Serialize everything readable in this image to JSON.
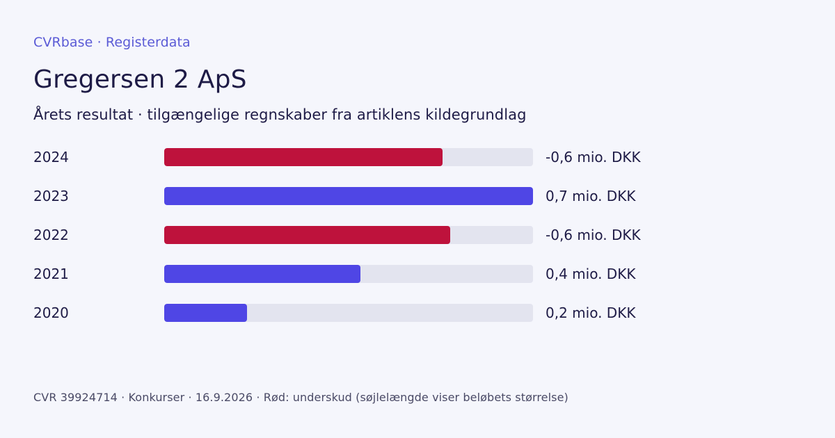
{
  "header": {
    "brand": "CVRbase · Registerdata",
    "title": "Gregersen 2 ApS",
    "subtitle": "Årets resultat · tilgængelige regnskaber fra artiklens kildegrundlag"
  },
  "footer": {
    "text": "CVR 39924714 · Konkurser · 16.9.2026 · Rød: underskud (søjlelængde viser beløbets størrelse)"
  },
  "colors": {
    "negative": "#be123c",
    "positive": "#4f46e5",
    "track": "#e3e4ef"
  },
  "chart_data": {
    "type": "bar",
    "orientation": "horizontal",
    "categories": [
      "2024",
      "2023",
      "2022",
      "2021",
      "2020"
    ],
    "values": [
      -0.6,
      0.7,
      -0.6,
      0.4,
      0.2
    ],
    "value_labels": [
      "-0,6 mio. DKK",
      "0,7 mio. DKK",
      "-0,6 mio. DKK",
      "0,4 mio. DKK",
      "0,2 mio. DKK"
    ],
    "magnitude_fractions": [
      0.755,
      1.0,
      0.775,
      0.532,
      0.224
    ],
    "title": "Gregersen 2 ApS",
    "subtitle": "Årets resultat · tilgængelige regnskaber fra artiklens kildegrundlag",
    "xlabel": "",
    "ylabel": "",
    "grid": false,
    "legend": "none"
  }
}
